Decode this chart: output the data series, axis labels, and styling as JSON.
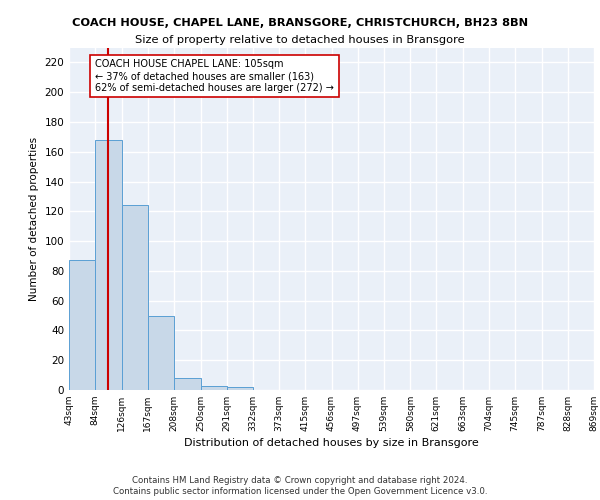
{
  "title1": "COACH HOUSE, CHAPEL LANE, BRANSGORE, CHRISTCHURCH, BH23 8BN",
  "title2": "Size of property relative to detached houses in Bransgore",
  "xlabel": "Distribution of detached houses by size in Bransgore",
  "ylabel": "Number of detached properties",
  "bar_edges": [
    43,
    84,
    126,
    167,
    208,
    250,
    291,
    332,
    373,
    415,
    456,
    497,
    539,
    580,
    621,
    663,
    704,
    745,
    787,
    828,
    869
  ],
  "bar_heights": [
    87,
    168,
    124,
    50,
    8,
    3,
    2,
    0,
    0,
    0,
    0,
    0,
    0,
    0,
    0,
    0,
    0,
    0,
    0,
    0
  ],
  "bar_color": "#c8d8e8",
  "bar_edgecolor": "#5a9fd4",
  "bg_color": "#eaf0f8",
  "grid_color": "#ffffff",
  "vline_x": 105,
  "vline_color": "#cc0000",
  "annotation_text": "COACH HOUSE CHAPEL LANE: 105sqm\n← 37% of detached houses are smaller (163)\n62% of semi-detached houses are larger (272) →",
  "annotation_box_color": "#ffffff",
  "annotation_box_edgecolor": "#cc0000",
  "ylim": [
    0,
    230
  ],
  "yticks": [
    0,
    20,
    40,
    60,
    80,
    100,
    120,
    140,
    160,
    180,
    200,
    220
  ],
  "footnote1": "Contains HM Land Registry data © Crown copyright and database right 2024.",
  "footnote2": "Contains public sector information licensed under the Open Government Licence v3.0."
}
